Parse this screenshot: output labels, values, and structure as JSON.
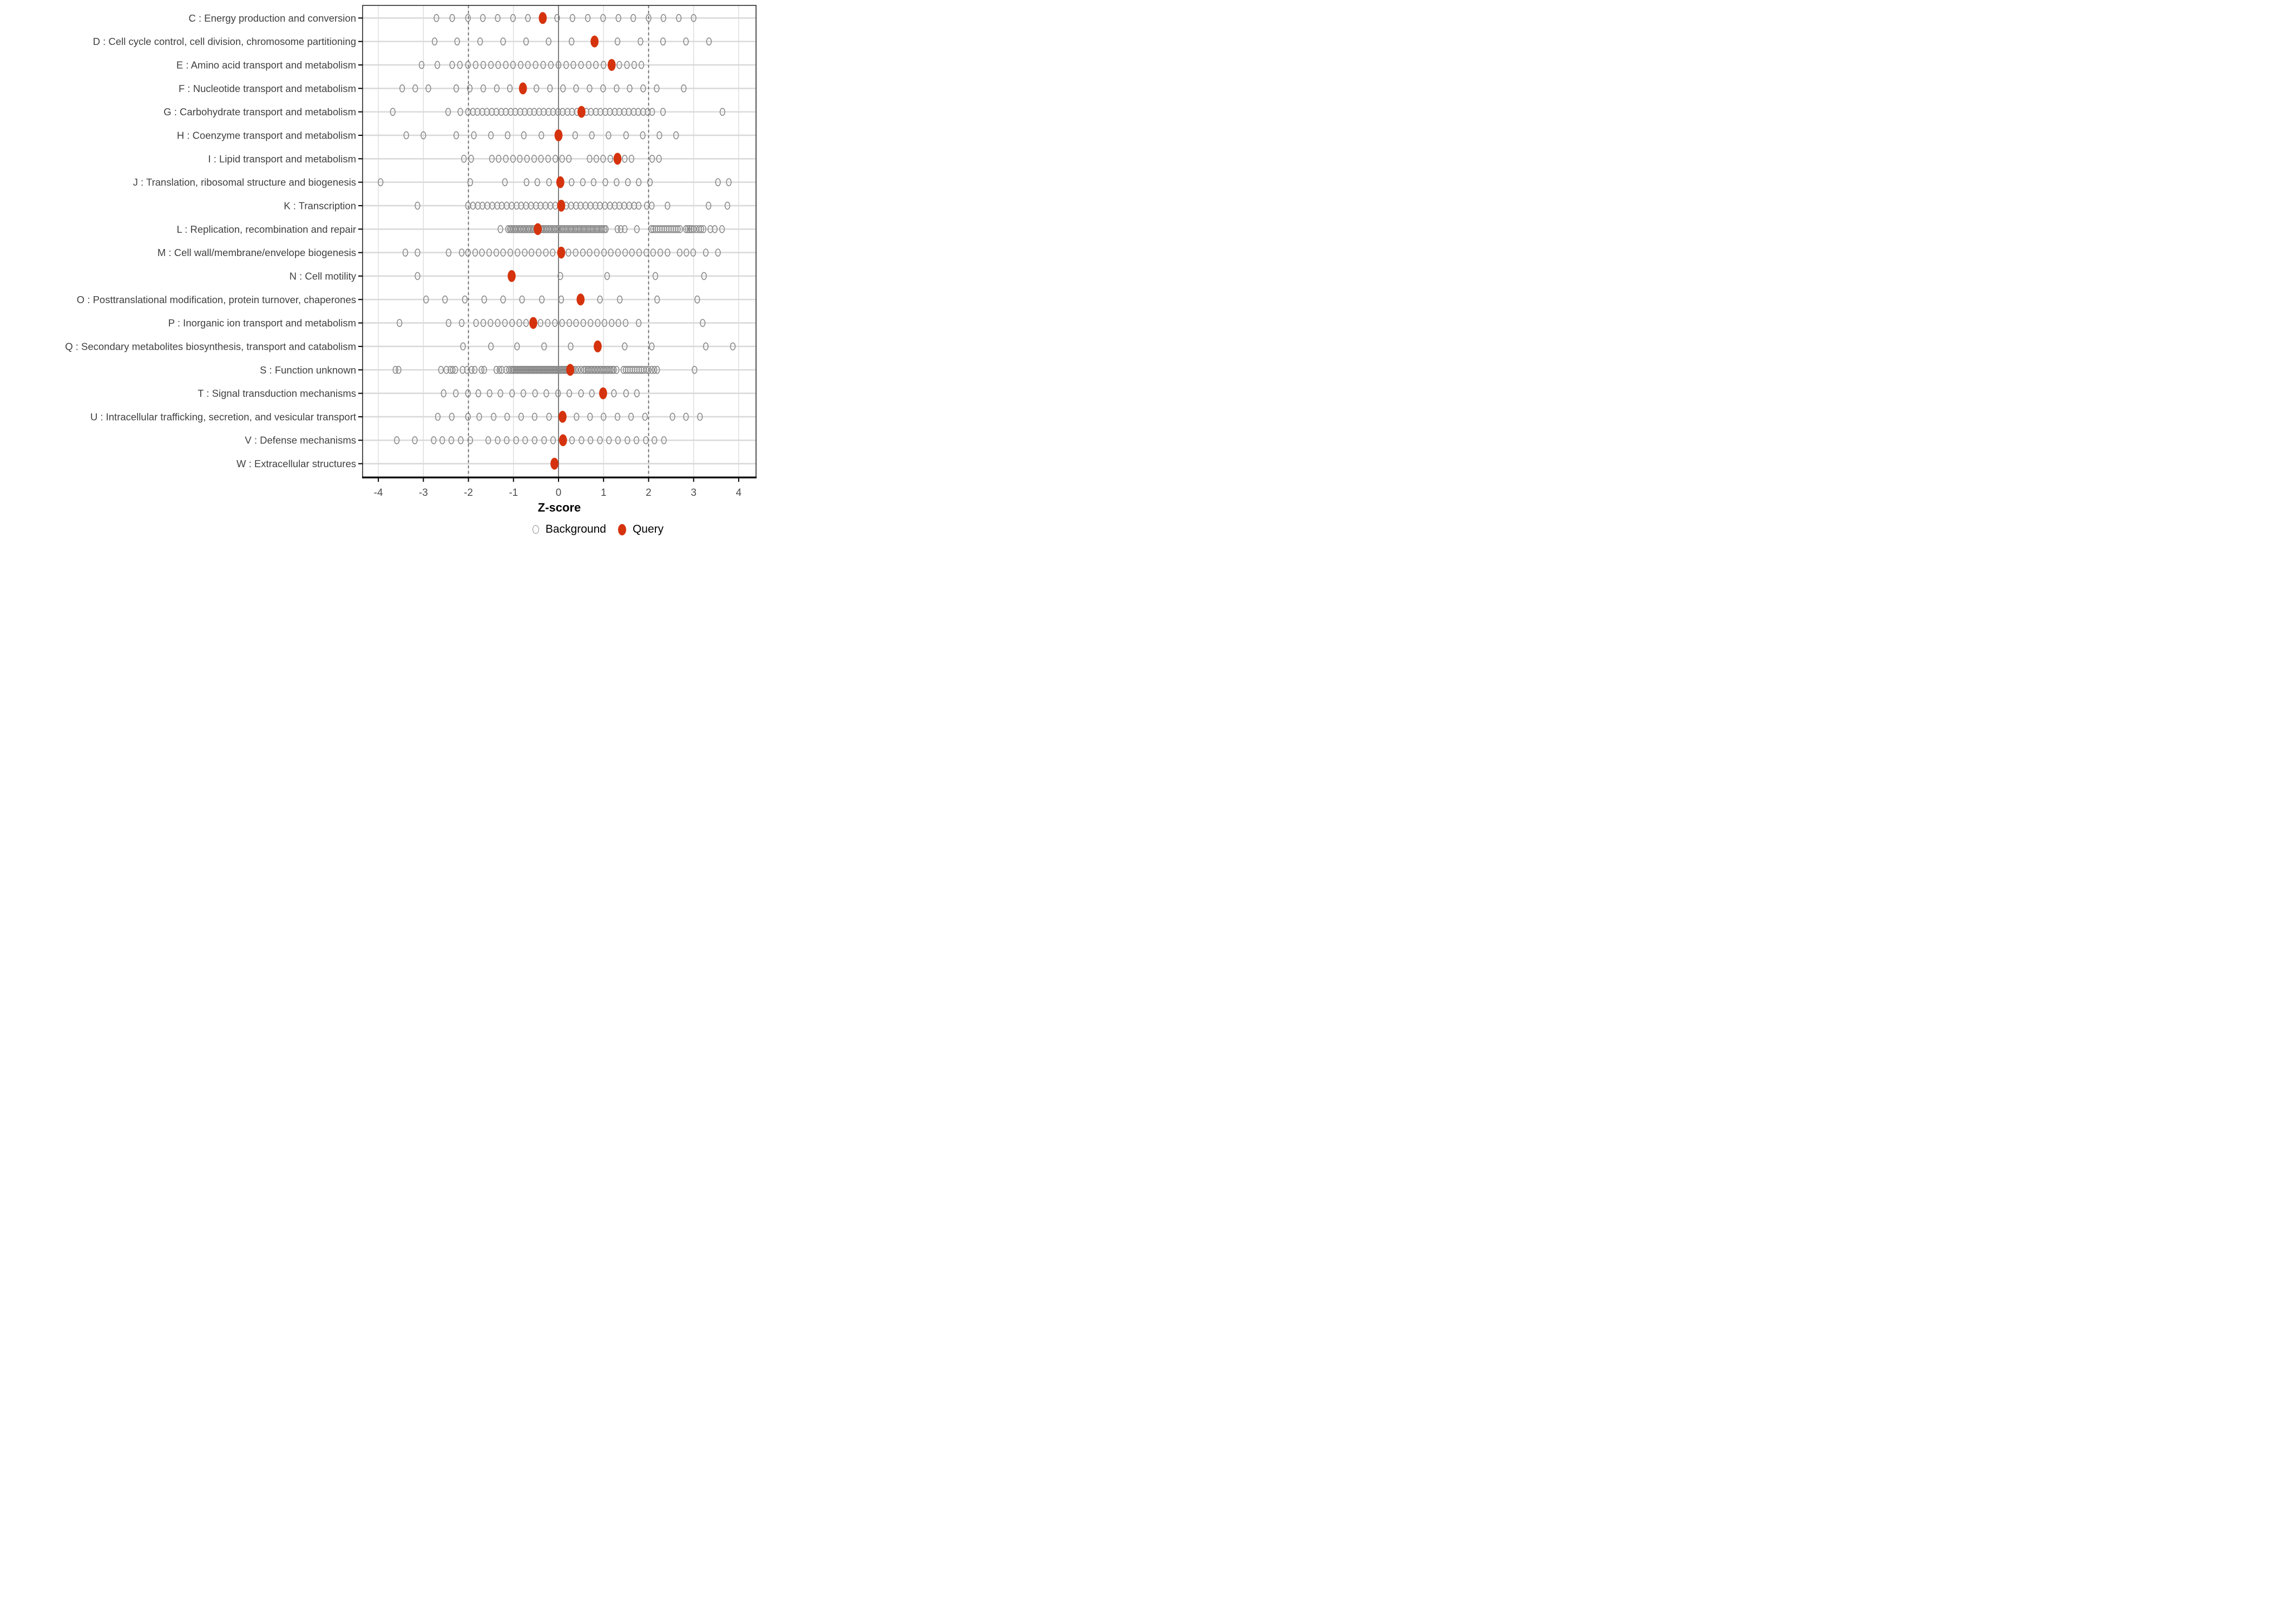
{
  "figure": {
    "xlabel": "Z-score",
    "legend": {
      "background_label": "Background",
      "query_label": "Query"
    }
  },
  "colors": {
    "query": "#d5330d",
    "background_stroke": "#8a8a8a",
    "grid": "#d9d9d9",
    "zero_line": "#4d4d4d",
    "dashed_line": "#606060",
    "axis": "#000000",
    "tick_text": "#4d4d4d",
    "label_text": "#404040"
  },
  "chart_data": {
    "type": "scatter",
    "subtype": "horizontal-strip-dotplot",
    "title": "",
    "xlabel": "Z-score",
    "ylabel": "",
    "xlim": [
      -4.35,
      4.38
    ],
    "x_ticks": [
      -4,
      -3,
      -2,
      -1,
      0,
      1,
      2,
      3,
      4
    ],
    "grid": true,
    "reference_lines": {
      "solid": [
        0
      ],
      "dashed": [
        -2,
        2
      ]
    },
    "legend_position": "bottom",
    "series_legend": [
      {
        "name": "Background",
        "marker": "open-circle",
        "color": "#8a8a8a"
      },
      {
        "name": "Query",
        "marker": "filled-circle",
        "color": "#d5330d"
      }
    ],
    "categories": [
      {
        "code": "C",
        "label": "C : Energy production and conversion",
        "query": -0.35,
        "background": [
          -2.71,
          -2.36,
          -2.01,
          -1.68,
          -1.35,
          -1.01,
          -0.68,
          -0.03,
          0.31,
          0.65,
          0.99,
          1.33,
          1.66,
          2.0,
          2.33,
          2.67,
          3.0
        ]
      },
      {
        "code": "D",
        "label": "D : Cell cycle control, cell division, chromosome partitioning",
        "query": 0.8,
        "background": [
          -2.75,
          -2.25,
          -1.74,
          -1.23,
          -0.72,
          -0.22,
          0.29,
          1.31,
          1.82,
          2.32,
          2.83,
          3.34
        ]
      },
      {
        "code": "E",
        "label": "E : Amino acid transport and metabolism",
        "query": 1.18,
        "background": [
          -3.04,
          -2.69,
          -2.36,
          -2.19,
          -2.01,
          -1.84,
          -1.67,
          -1.5,
          -1.34,
          -1.17,
          -1.01,
          -0.84,
          -0.68,
          -0.51,
          -0.34,
          -0.17,
          0.0,
          0.17,
          0.33,
          0.5,
          0.67,
          0.83,
          1.0,
          1.35,
          1.52,
          1.68,
          1.84
        ]
      },
      {
        "code": "F",
        "label": "F : Nucleotide transport and metabolism",
        "query": -0.79,
        "background": [
          -3.47,
          -3.18,
          -2.89,
          -2.27,
          -1.97,
          -1.67,
          -1.37,
          -1.08,
          -0.49,
          -0.19,
          0.1,
          0.39,
          0.69,
          0.99,
          1.29,
          1.58,
          1.88,
          2.18,
          2.78
        ]
      },
      {
        "code": "G",
        "label": "G : Carbohydrate transport and metabolism",
        "query": 0.51,
        "background": [
          -3.68,
          -2.45,
          -2.18,
          -2.01,
          -1.9,
          -1.8,
          -1.69,
          -1.59,
          -1.48,
          -1.38,
          -1.27,
          -1.17,
          -1.06,
          -0.96,
          -0.85,
          -0.75,
          -0.64,
          -0.54,
          -0.43,
          -0.33,
          -0.22,
          -0.12,
          -0.01,
          0.09,
          0.2,
          0.3,
          0.41,
          0.62,
          0.72,
          0.83,
          0.93,
          1.04,
          1.14,
          1.25,
          1.35,
          1.46,
          1.56,
          1.67,
          1.77,
          1.88,
          1.98,
          2.08,
          2.32,
          3.64
        ]
      },
      {
        "code": "H",
        "label": "H : Coenzyme transport and metabolism",
        "query": 0.0,
        "background": [
          -3.38,
          -3.0,
          -2.27,
          -1.88,
          -1.5,
          -1.13,
          -0.77,
          -0.38,
          0.37,
          0.74,
          1.11,
          1.5,
          1.87,
          2.24,
          2.61
        ]
      },
      {
        "code": "I",
        "label": "I : Lipid transport and metabolism",
        "query": 1.31,
        "background": [
          -2.1,
          -1.94,
          -1.48,
          -1.33,
          -1.17,
          -1.01,
          -0.86,
          -0.7,
          -0.54,
          -0.39,
          -0.23,
          -0.07,
          0.08,
          0.23,
          0.69,
          0.84,
          0.99,
          1.15,
          1.47,
          1.62,
          2.08,
          2.23
        ]
      },
      {
        "code": "J",
        "label": "J : Translation, ribosomal structure and biogenesis",
        "query": 0.04,
        "background": [
          -3.95,
          -1.96,
          -1.19,
          -0.71,
          -0.47,
          -0.21,
          0.29,
          0.54,
          0.78,
          1.04,
          1.29,
          1.54,
          1.78,
          2.03,
          3.54,
          3.78
        ]
      },
      {
        "code": "K",
        "label": "K : Transcription",
        "query": 0.06,
        "background": [
          -3.13,
          -2.01,
          -1.9,
          -1.79,
          -1.69,
          -1.58,
          -1.47,
          -1.36,
          -1.26,
          -1.15,
          -1.04,
          -0.93,
          -0.83,
          -0.72,
          -0.61,
          -0.5,
          -0.4,
          -0.29,
          -0.18,
          -0.07,
          0.17,
          0.28,
          0.39,
          0.49,
          0.6,
          0.71,
          0.82,
          0.92,
          1.03,
          1.14,
          1.25,
          1.35,
          1.46,
          1.57,
          1.68,
          1.78,
          1.96,
          2.07,
          2.42,
          3.33,
          3.75
        ]
      },
      {
        "code": "L",
        "label": "L : Replication, recombination and repair",
        "query": -0.46,
        "background": [
          -1.29,
          -1.12,
          -1.08,
          -1.05,
          -1.01,
          -0.97,
          -0.94,
          -0.9,
          -0.86,
          -0.83,
          -0.79,
          -0.76,
          -0.72,
          -0.68,
          -0.65,
          -0.61,
          -0.57,
          -0.54,
          -0.5,
          -0.43,
          -0.39,
          -0.36,
          -0.32,
          -0.28,
          -0.25,
          -0.21,
          -0.18,
          -0.14,
          -0.1,
          -0.07,
          -0.03,
          0.0,
          0.04,
          0.08,
          0.11,
          0.15,
          0.18,
          0.22,
          0.26,
          0.29,
          0.33,
          0.37,
          0.4,
          0.44,
          0.47,
          0.51,
          0.55,
          0.58,
          0.62,
          0.66,
          0.69,
          0.73,
          0.76,
          0.8,
          0.84,
          0.87,
          0.91,
          0.95,
          0.98,
          1.02,
          1.05,
          1.31,
          1.38,
          1.47,
          1.74,
          2.06,
          2.1,
          2.15,
          2.2,
          2.25,
          2.3,
          2.35,
          2.4,
          2.45,
          2.5,
          2.55,
          2.6,
          2.65,
          2.7,
          2.83,
          2.87,
          2.91,
          2.95,
          3.0,
          3.06,
          3.12,
          3.17,
          3.22,
          3.37,
          3.47,
          3.63
        ]
      },
      {
        "code": "M",
        "label": "M : Cell wall/membrane/envelope biogenesis",
        "query": 0.06,
        "background": [
          -3.4,
          -3.13,
          -2.44,
          -2.15,
          -2.01,
          -1.85,
          -1.7,
          -1.54,
          -1.38,
          -1.23,
          -1.07,
          -0.91,
          -0.75,
          -0.6,
          -0.44,
          -0.28,
          -0.13,
          0.22,
          0.38,
          0.54,
          0.69,
          0.85,
          1.01,
          1.16,
          1.32,
          1.48,
          1.63,
          1.79,
          1.95,
          2.1,
          2.26,
          2.42,
          2.69,
          2.84,
          2.99,
          3.27,
          3.54
        ]
      },
      {
        "code": "N",
        "label": "N : Cell motility",
        "query": -1.04,
        "background": [
          -3.13,
          0.04,
          1.08,
          2.15,
          3.23
        ]
      },
      {
        "code": "O",
        "label": "O : Posttranslational modification, protein turnover, chaperones",
        "query": 0.49,
        "background": [
          -2.94,
          -2.52,
          -2.08,
          -1.65,
          -1.23,
          -0.81,
          -0.37,
          0.06,
          0.92,
          1.36,
          2.19,
          3.08
        ]
      },
      {
        "code": "P",
        "label": "P : Inorganic ion transport and metabolism",
        "query": -0.56,
        "background": [
          -3.53,
          -2.44,
          -2.15,
          -1.83,
          -1.67,
          -1.51,
          -1.35,
          -1.19,
          -1.03,
          -0.87,
          -0.72,
          -0.4,
          -0.24,
          -0.08,
          0.08,
          0.24,
          0.39,
          0.55,
          0.71,
          0.87,
          1.02,
          1.18,
          1.33,
          1.49,
          1.78,
          3.2
        ]
      },
      {
        "code": "Q",
        "label": "Q : Secondary metabolites biosynthesis, transport and catabolism",
        "query": 0.87,
        "background": [
          -2.12,
          -1.5,
          -0.92,
          -0.32,
          0.27,
          1.47,
          2.07,
          3.27,
          3.87
        ]
      },
      {
        "code": "S",
        "label": "S : Function unknown",
        "query": 0.26,
        "background": [
          -3.62,
          -3.55,
          -2.61,
          -2.49,
          -2.4,
          -2.35,
          -2.29,
          -2.13,
          -2.03,
          -1.93,
          -1.86,
          -1.71,
          -1.65,
          -1.38,
          -1.31,
          -1.26,
          -1.16,
          -1.1,
          -1.05,
          -1.02,
          -0.99,
          -0.96,
          -0.93,
          -0.9,
          -0.87,
          -0.84,
          -0.81,
          -0.78,
          -0.75,
          -0.72,
          -0.69,
          -0.66,
          -0.63,
          -0.6,
          -0.57,
          -0.54,
          -0.51,
          -0.48,
          -0.45,
          -0.42,
          -0.39,
          -0.36,
          -0.33,
          -0.3,
          -0.27,
          -0.24,
          -0.21,
          -0.18,
          -0.15,
          -0.12,
          -0.09,
          -0.06,
          -0.03,
          0.0,
          0.03,
          0.06,
          0.09,
          0.12,
          0.15,
          0.18,
          0.21,
          0.24,
          0.3,
          0.33,
          0.38,
          0.44,
          0.5,
          0.56,
          0.6,
          0.64,
          0.67,
          0.71,
          0.74,
          0.78,
          0.81,
          0.85,
          0.88,
          0.92,
          0.95,
          0.99,
          1.02,
          1.06,
          1.09,
          1.13,
          1.16,
          1.2,
          1.23,
          1.29,
          1.44,
          1.49,
          1.54,
          1.59,
          1.64,
          1.69,
          1.74,
          1.79,
          1.84,
          1.89,
          1.95,
          2.0,
          2.07,
          2.13,
          2.19,
          3.02
        ]
      },
      {
        "code": "T",
        "label": "T : Signal transduction mechanisms",
        "query": 0.99,
        "background": [
          -2.55,
          -2.28,
          -2.01,
          -1.78,
          -1.53,
          -1.29,
          -1.03,
          -0.78,
          -0.52,
          -0.27,
          -0.01,
          0.24,
          0.5,
          0.74,
          1.23,
          1.5,
          1.74
        ]
      },
      {
        "code": "U",
        "label": "U : Intracellular trafficking, secretion, and vesicular transport",
        "query": 0.09,
        "background": [
          -2.68,
          -2.37,
          -2.01,
          -1.76,
          -1.44,
          -1.14,
          -0.83,
          -0.53,
          -0.21,
          0.4,
          0.7,
          1.0,
          1.31,
          1.61,
          1.92,
          2.53,
          2.83,
          3.14
        ]
      },
      {
        "code": "V",
        "label": "V : Defense mechanisms",
        "query": 0.1,
        "background": [
          -3.59,
          -3.19,
          -2.77,
          -2.58,
          -2.38,
          -2.17,
          -1.96,
          -1.56,
          -1.35,
          -1.15,
          -0.94,
          -0.74,
          -0.53,
          -0.32,
          -0.12,
          0.3,
          0.51,
          0.71,
          0.92,
          1.12,
          1.32,
          1.53,
          1.73,
          1.94,
          2.13,
          2.34
        ]
      },
      {
        "code": "W",
        "label": "W : Extracellular structures",
        "query": -0.09,
        "background": []
      }
    ]
  }
}
